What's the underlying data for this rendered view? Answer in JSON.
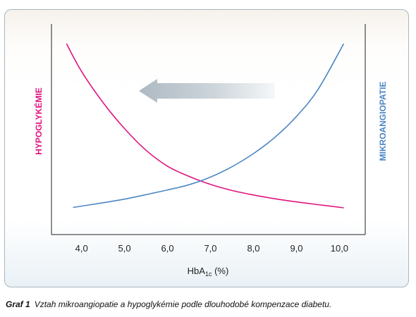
{
  "colors": {
    "hypoglykemie": "#e0147f",
    "mikroangiopatie": "#4d86c4",
    "axis": "#222222",
    "arrow": "#b9c4cc"
  },
  "chart_data": {
    "type": "line",
    "xlabel_main": "HbA",
    "xlabel_sub": "1c",
    "xlabel_unit": " (%)",
    "x_ticks": [
      "4,0",
      "5,0",
      "6,0",
      "7,0",
      "8,0",
      "9,0",
      "10,0"
    ],
    "x_tick_values": [
      4.0,
      5.0,
      6.0,
      7.0,
      8.0,
      9.0,
      10.0
    ],
    "xlim": [
      3.3,
      10.6
    ],
    "ylim": [
      0,
      100
    ],
    "y_ticks_shown": false,
    "left_axis_label": "HYPOGLYKÉMIE",
    "right_axis_label": "MIKROANGIOPATIE",
    "annotation": "arrow pointing left (toward lower HbA1c)",
    "series": [
      {
        "name": "HYPOGLYKÉMIE",
        "x": [
          3.65,
          4.0,
          4.5,
          5.0,
          5.5,
          6.0,
          6.5,
          7.0,
          7.5,
          8.0,
          8.5,
          9.0,
          9.5,
          10.1
        ],
        "y": [
          100,
          84,
          66,
          51,
          38.5,
          29.3,
          23.4,
          18.8,
          15.3,
          12.7,
          10.5,
          8.7,
          7.1,
          5.3
        ]
      },
      {
        "name": "MIKROANGIOPATIE",
        "x": [
          3.8,
          4.5,
          5.0,
          5.5,
          6.0,
          6.5,
          7.0,
          7.5,
          8.0,
          8.5,
          9.0,
          9.5,
          10.1
        ],
        "y": [
          5.5,
          8.2,
          10.3,
          12.9,
          15.6,
          18.6,
          23.0,
          29.0,
          36.6,
          46.0,
          58.0,
          73.5,
          100
        ]
      }
    ]
  },
  "caption": {
    "label": "Graf 1",
    "text": "Vztah mikroangiopatie a hypoglykémie podle dlouhodobé kompenzace diabetu."
  }
}
